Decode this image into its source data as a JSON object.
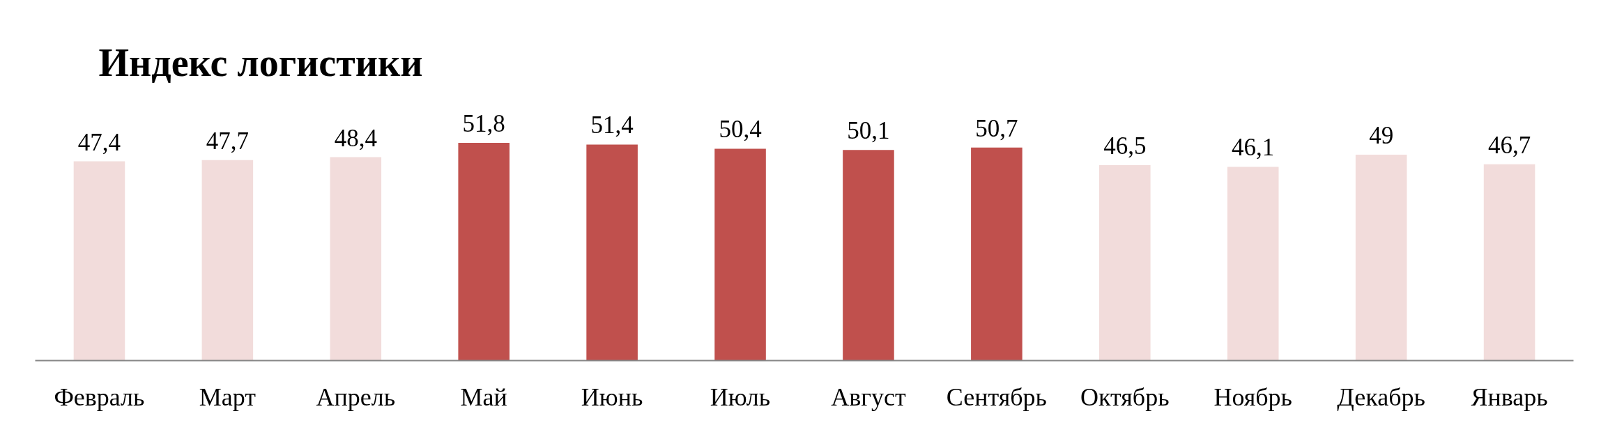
{
  "chart_data": {
    "type": "bar",
    "title": "Индекс логистики",
    "categories": [
      "Февраль",
      "Март",
      "Апрель",
      "Май",
      "Июнь",
      "Июль",
      "Август",
      "Сентябрь",
      "Октябрь",
      "Ноябрь",
      "Декабрь",
      "Январь"
    ],
    "values": [
      47.4,
      47.7,
      48.4,
      51.8,
      51.4,
      50.4,
      50.1,
      50.7,
      46.5,
      46.1,
      49,
      46.7
    ],
    "value_labels": [
      "47,4",
      "47,7",
      "48,4",
      "51,8",
      "51,4",
      "50,4",
      "50,1",
      "50,7",
      "46,5",
      "46,1",
      "49",
      "46,7"
    ],
    "colors": [
      "#f2dcdb",
      "#f2dcdb",
      "#f2dcdb",
      "#c0504d",
      "#c0504d",
      "#c0504d",
      "#c0504d",
      "#c0504d",
      "#f2dcdb",
      "#f2dcdb",
      "#f2dcdb",
      "#f2dcdb"
    ],
    "tick_labels": "x",
    "grid": false
  }
}
